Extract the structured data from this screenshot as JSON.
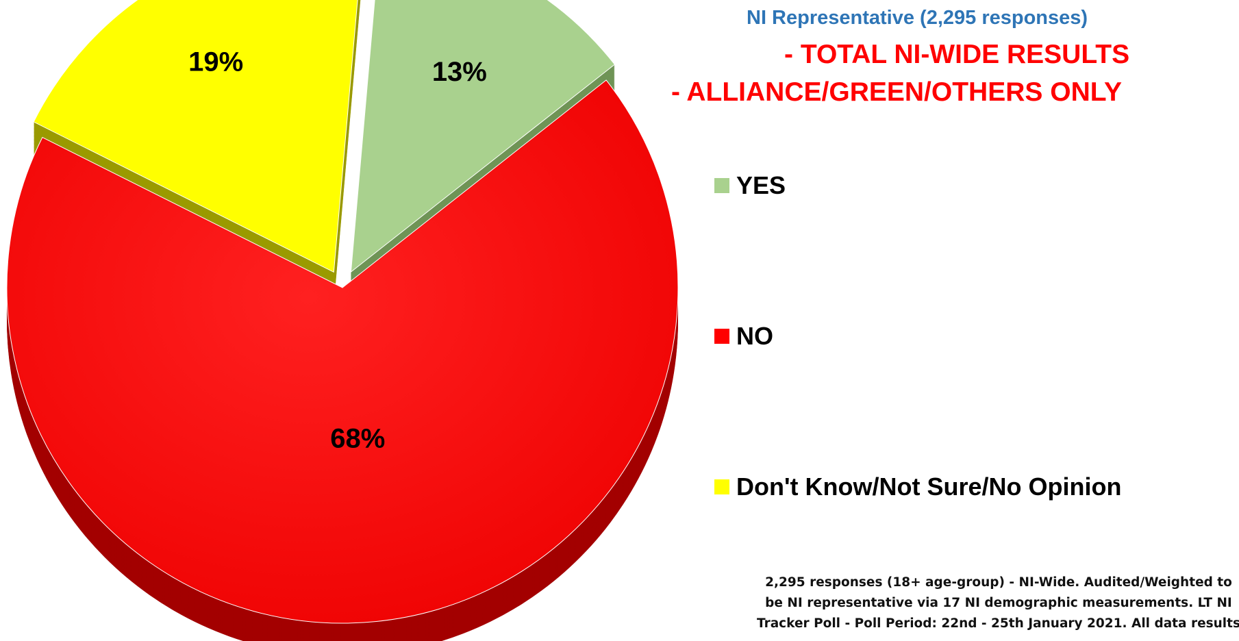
{
  "chart_data": {
    "type": "pie",
    "title_lines": [
      "NI Representative  (2,295 responses)",
      "- TOTAL NI-WIDE RESULTS",
      "- ALLIANCE/GREEN/OTHERS ONLY"
    ],
    "slices": [
      {
        "label": "YES",
        "value": 13,
        "display": "13%",
        "color": "#a9d18e"
      },
      {
        "label": "NO",
        "value": 68,
        "display": "68%",
        "color": "#ff0000"
      },
      {
        "label": "Don't Know/Not Sure/No Opinion",
        "value": 19,
        "display": "19%",
        "color": "#ffff00"
      }
    ],
    "legend_position": "right",
    "footnote_lines": [
      "2,295 responses (18+ age-group) - NI-Wide. Audited/Weighted to",
      "be NI representative via 17 NI demographic measurements. LT NI",
      "Tracker Poll - Poll Period: 22nd - 25th January 2021. All data results"
    ]
  }
}
